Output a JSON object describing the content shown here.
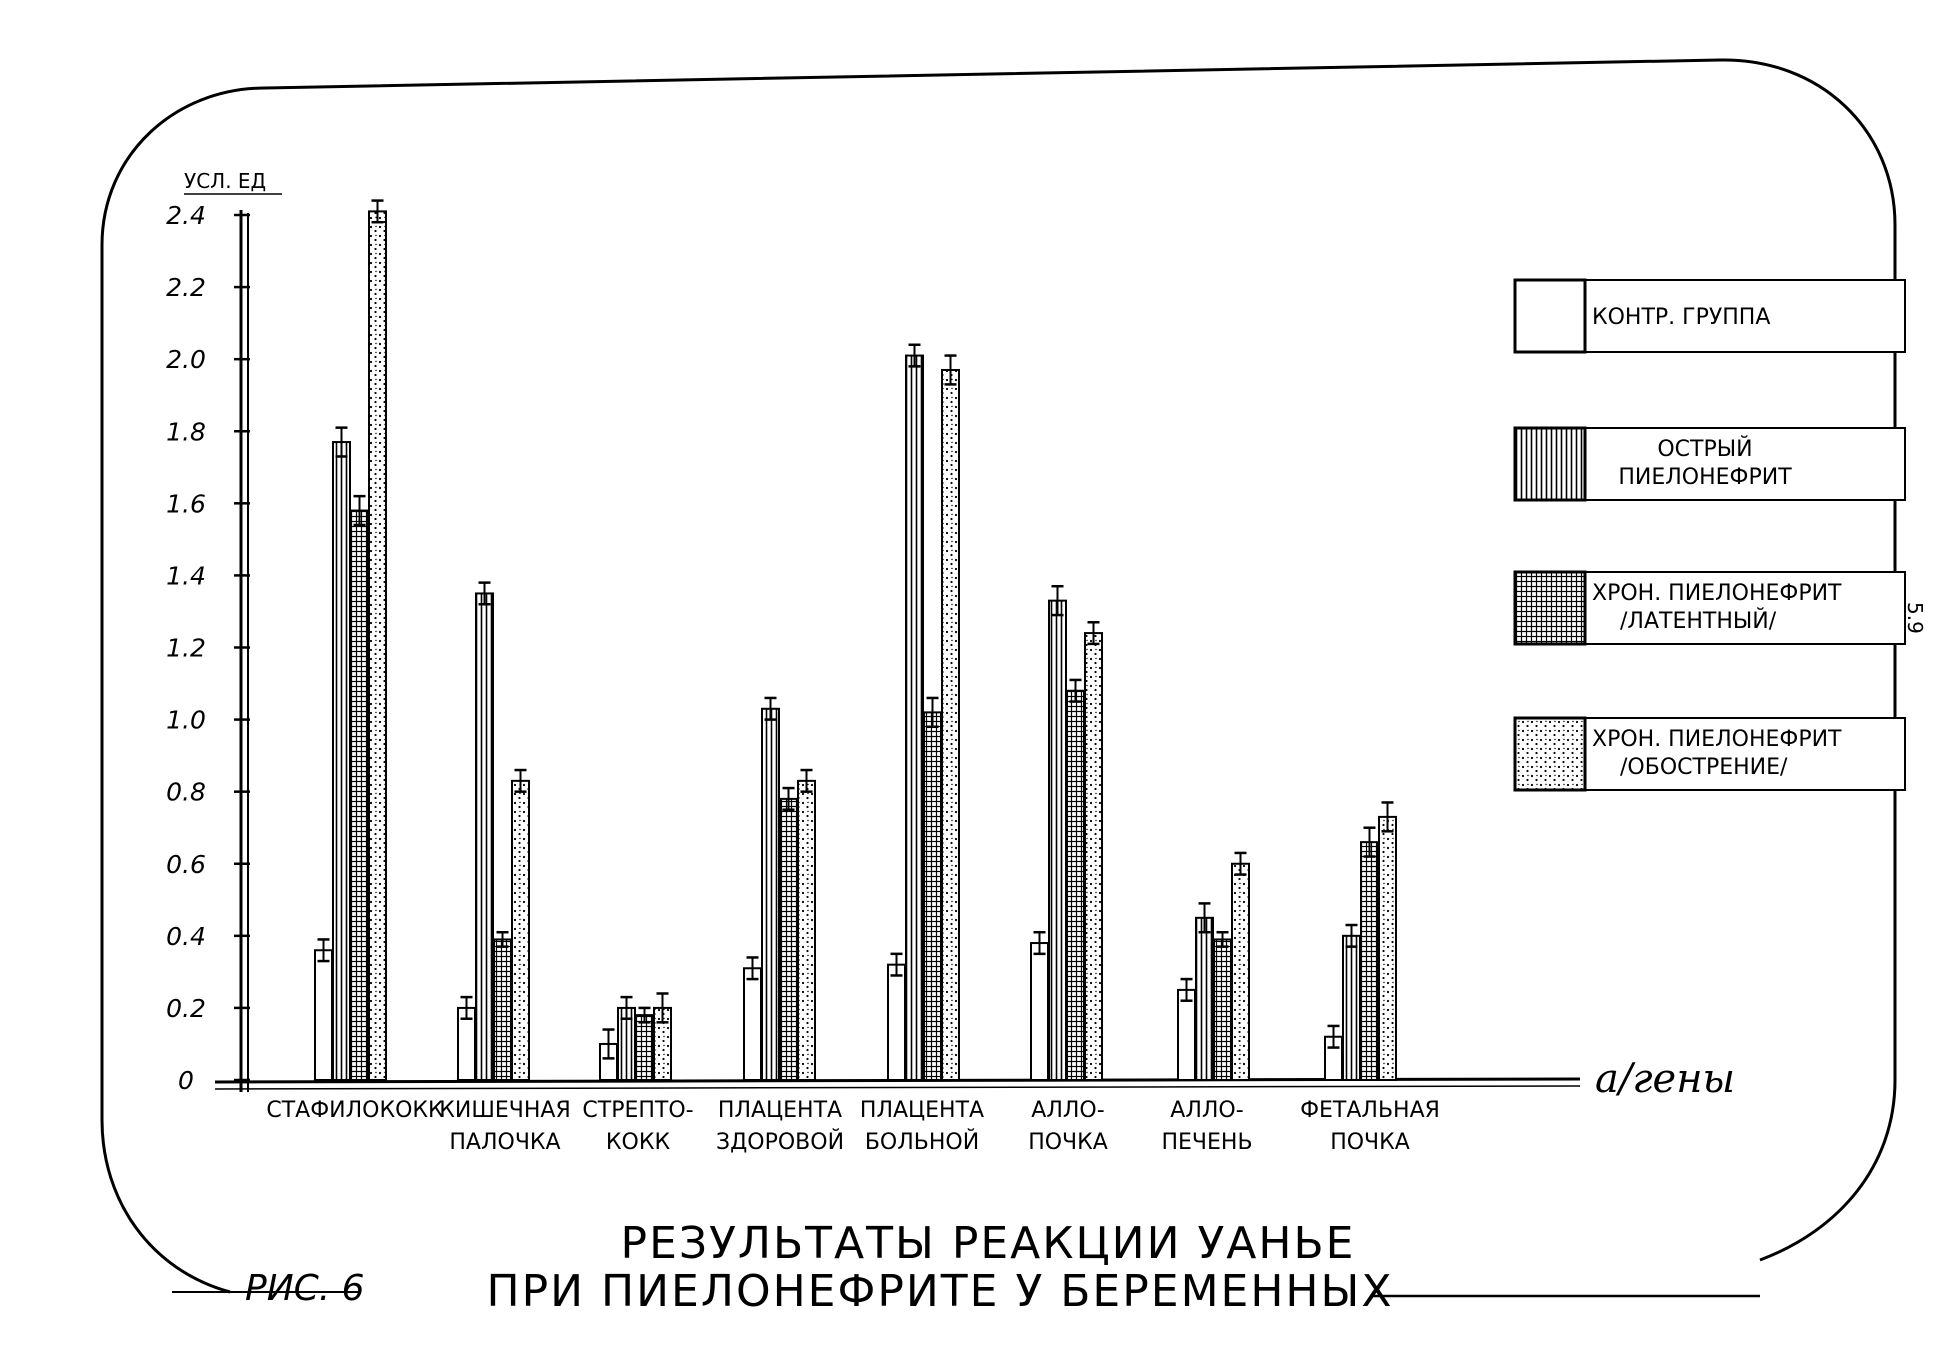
{
  "chart_data": {
    "type": "bar",
    "ylabel": "УСЛ. ЕД",
    "xlabel": "а/гены",
    "ylim": [
      0,
      2.4
    ],
    "yticks": [
      "0",
      "0.2",
      "0.4",
      "0.6",
      "0.8",
      "1.0",
      "1.2",
      "1.4",
      "1.6",
      "1.8",
      "2.0",
      "2.2",
      "2.4"
    ],
    "categories": [
      [
        "СТАФИЛОКОКК"
      ],
      [
        "КИШЕЧНАЯ",
        "ПАЛОЧКА"
      ],
      [
        "СТРЕПТО-",
        "КОКК"
      ],
      [
        "ПЛАЦЕНТА",
        "ЗДОРОВОЙ"
      ],
      [
        "ПЛАЦЕНТА",
        "БОЛЬНОЙ"
      ],
      [
        "АЛЛО-",
        "ПОЧКА"
      ],
      [
        "АЛЛО-",
        "ПЕЧЕНЬ"
      ],
      [
        "ФЕТАЛЬНАЯ",
        "ПОЧКА"
      ]
    ],
    "series": [
      {
        "name": [
          "КОНТР. ГРУППА"
        ],
        "pattern": "plain",
        "values": [
          0.36,
          0.2,
          0.1,
          0.31,
          0.32,
          0.38,
          0.25,
          0.12
        ],
        "errors": [
          0.03,
          0.03,
          0.04,
          0.03,
          0.03,
          0.03,
          0.03,
          0.03
        ]
      },
      {
        "name": [
          "ОСТРЫЙ",
          "ПИЕЛОНЕФРИТ"
        ],
        "pattern": "vertical",
        "values": [
          1.77,
          1.35,
          0.2,
          1.03,
          2.01,
          1.33,
          0.45,
          0.4
        ],
        "errors": [
          0.04,
          0.03,
          0.03,
          0.03,
          0.03,
          0.04,
          0.04,
          0.03
        ]
      },
      {
        "name": [
          "ХРОН. ПИЕЛОНЕФРИТ",
          "/ЛАТЕНТНЫЙ/"
        ],
        "pattern": "grid",
        "values": [
          1.58,
          0.39,
          0.18,
          0.78,
          1.02,
          1.08,
          0.39,
          0.66
        ],
        "errors": [
          0.04,
          0.02,
          0.02,
          0.03,
          0.04,
          0.03,
          0.02,
          0.04
        ]
      },
      {
        "name": [
          "ХРОН. ПИЕЛОНЕФРИТ",
          "/ОБОСТРЕНИЕ/"
        ],
        "pattern": "dots",
        "values": [
          2.41,
          0.83,
          0.2,
          0.83,
          1.97,
          1.24,
          0.6,
          0.73
        ],
        "errors": [
          0.03,
          0.03,
          0.04,
          0.03,
          0.04,
          0.03,
          0.03,
          0.04
        ]
      }
    ],
    "legend_position": "right",
    "grid": false,
    "colors": {
      "ink": "#000000",
      "paper": "#ffffff"
    }
  },
  "title": [
    "РЕЗУЛЬТАТЫ РЕАКЦИИ УАНЬЕ",
    "ПРИ ПИЕЛОНЕФРИТЕ У БЕРЕМЕННЫХ"
  ],
  "figure_label": "РИС. 6",
  "margin_mark": "5.9"
}
